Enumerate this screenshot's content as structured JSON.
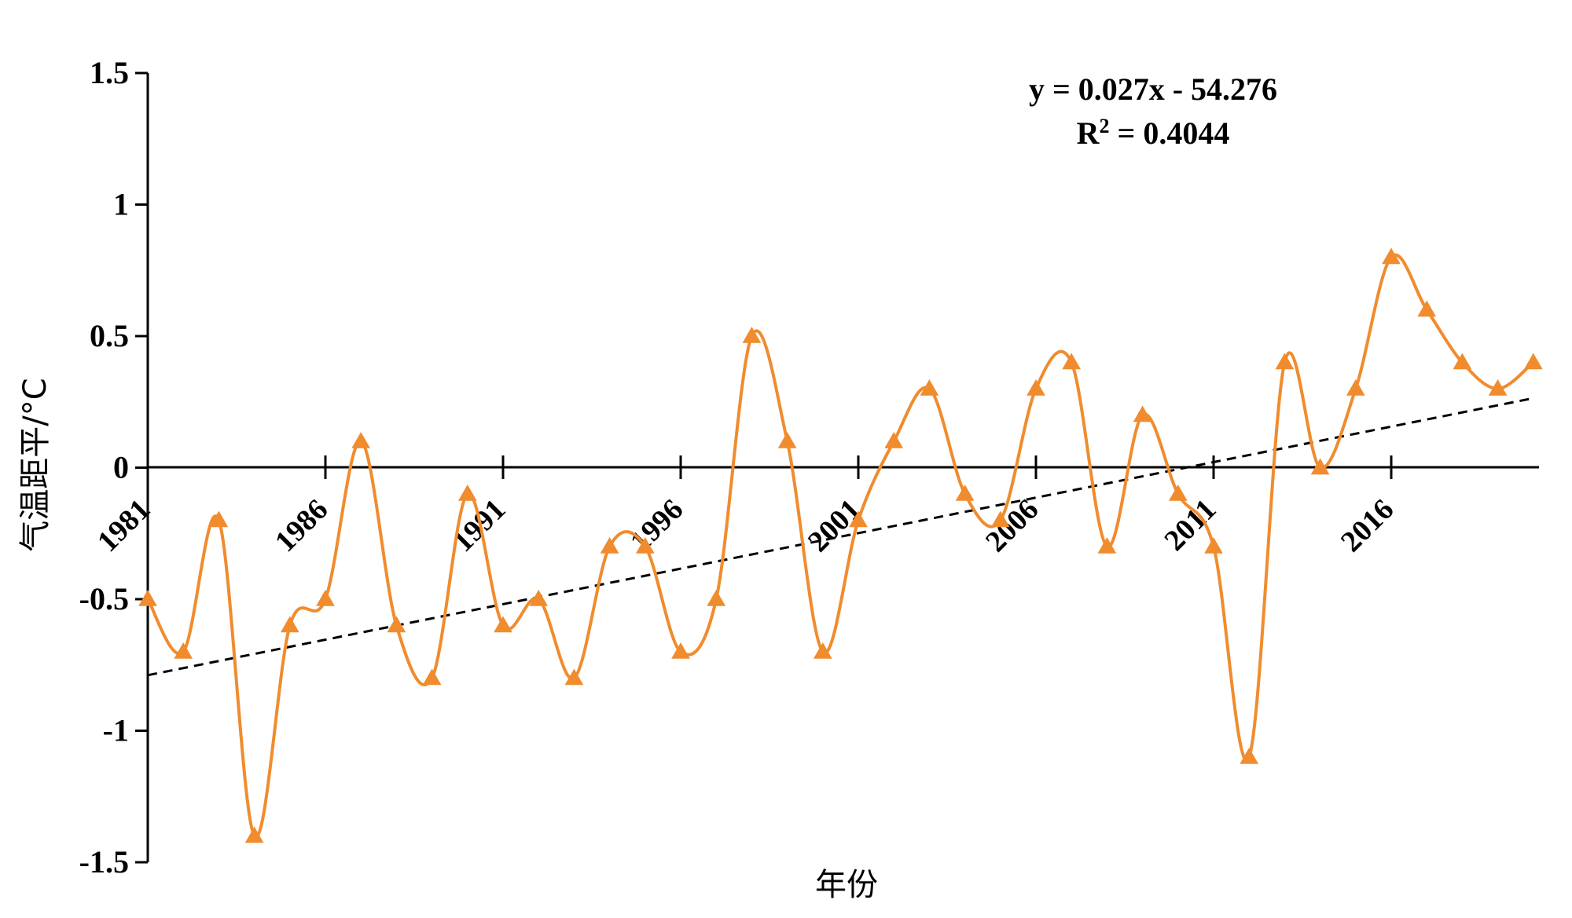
{
  "chart_data": {
    "type": "line",
    "xlabel": "年份",
    "ylabel": "气温距平/°C",
    "ylim": [
      -1.5,
      1.5
    ],
    "yticks": [
      "1.5",
      "1",
      "0.5",
      "0",
      "-0.5",
      "-1",
      "-1.5"
    ],
    "xticks": [
      "1981",
      "1986",
      "1991",
      "1996",
      "2001",
      "2006",
      "2011",
      "2016"
    ],
    "x": [
      1981,
      1982,
      1983,
      1984,
      1985,
      1986,
      1987,
      1988,
      1989,
      1990,
      1991,
      1992,
      1993,
      1994,
      1995,
      1996,
      1997,
      1998,
      1999,
      2000,
      2001,
      2002,
      2003,
      2004,
      2005,
      2006,
      2007,
      2008,
      2009,
      2010,
      2011,
      2012,
      2013,
      2014,
      2015,
      2016,
      2017,
      2018,
      2019,
      2020
    ],
    "series": [
      {
        "color": "#f08c2e",
        "marker": "triangle",
        "values": [
          -0.5,
          -0.7,
          -0.2,
          -1.4,
          -0.6,
          -0.5,
          0.1,
          -0.6,
          -0.8,
          -0.1,
          -0.6,
          -0.5,
          -0.8,
          -0.3,
          -0.3,
          -0.7,
          -0.5,
          0.5,
          0.1,
          -0.7,
          -0.2,
          0.1,
          0.3,
          -0.1,
          -0.2,
          0.3,
          0.4,
          -0.3,
          0.2,
          -0.1,
          -0.3,
          -1.1,
          0.4,
          0.0,
          0.3,
          0.8,
          0.6,
          0.4,
          0.3,
          0.4
        ]
      }
    ],
    "trendline": {
      "style": "dashed",
      "color": "#000000",
      "equation": "y = 0.027x - 54.276",
      "r2_label": "R",
      "r2_sup": "2",
      "r2_value": " = 0.4044"
    }
  }
}
